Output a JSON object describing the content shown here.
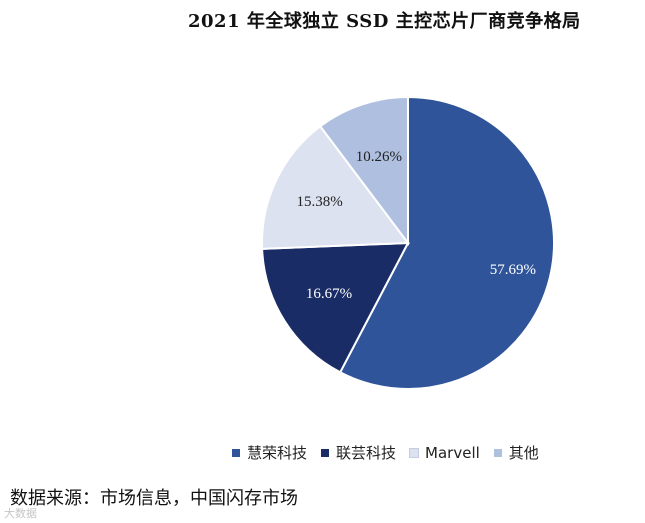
{
  "chart_data": {
    "type": "pie",
    "title": "2021 年全球独立 SSD 主控芯片厂商竞争格局",
    "slices": [
      {
        "name": "慧荣科技",
        "value": 57.69,
        "label": "57.69%",
        "color": "#2f549a",
        "label_color": "#ffffff"
      },
      {
        "name": "联芸科技",
        "value": 16.67,
        "label": "16.67%",
        "color": "#1a2c66",
        "label_color": "#ffffff"
      },
      {
        "name": "Marvell",
        "value": 15.38,
        "label": "15.38%",
        "color": "#dde2f0",
        "label_color": "#222222"
      },
      {
        "name": "其他",
        "value": 10.26,
        "label": "10.26%",
        "color": "#aebfe0",
        "label_color": "#222222"
      }
    ],
    "start_angle": "12 o'clock",
    "direction": "clockwise",
    "legend_position": "bottom"
  },
  "source": "数据来源：市场信息，中国闪存市场",
  "watermark": "大数据"
}
